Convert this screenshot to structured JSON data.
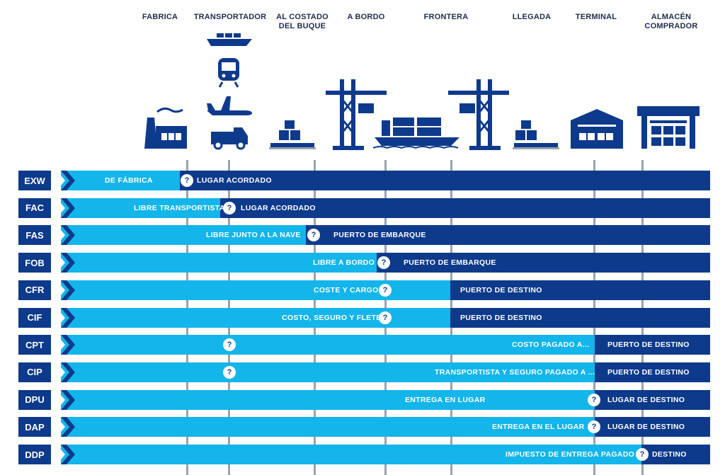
{
  "columns": [
    {
      "name": "FABRICA"
    },
    {
      "name": "TRANSPORTADOR"
    },
    {
      "name": "AL COSTADO\nDEL BUQUE"
    },
    {
      "name": "A BORDO"
    },
    {
      "name": "FRONTERA"
    },
    {
      "name": "LLEGADA"
    },
    {
      "name": "TERMINAL"
    },
    {
      "name": "ALMACÉN\nCOMPRADOR"
    }
  ],
  "icons": [
    "factory-icon",
    "cargo-ship-icon",
    "train-icon",
    "airplane-icon",
    "truck-icon",
    "pallet-boxes-icon",
    "port-crane-icon",
    "container-ship-icon",
    "port-crane-icon",
    "pallet-boxes-icon",
    "terminal-warehouse-icon",
    "buyer-warehouse-icon"
  ],
  "marker_symbol": "?",
  "rows": [
    {
      "code": "EXW",
      "seller_text": "DE FÁBRICA",
      "buyer_text": "LUGAR ACORDADO"
    },
    {
      "code": "FAC",
      "seller_text": "LIBRE TRANSPORTISTA",
      "buyer_text": "LUGAR ACORDADO"
    },
    {
      "code": "FAS",
      "seller_text": "LIBRE JUNTO A LA NAVE",
      "buyer_text": "PUERTO DE EMBARQUE"
    },
    {
      "code": "FOB",
      "seller_text": "LIBRE A BORDO",
      "buyer_text": "PUERTO DE EMBARQUE"
    },
    {
      "code": "CFR",
      "seller_text": "COSTE Y CARGO",
      "buyer_text": "PUERTO DE DESTINO"
    },
    {
      "code": "CIF",
      "seller_text": "COSTO, SEGURO Y FLETE",
      "buyer_text": "PUERTO DE DESTINO"
    },
    {
      "code": "CPT",
      "seller_text": "COSTO PAGADO A...",
      "buyer_text": "PUERTO DE DESTINO"
    },
    {
      "code": "CIP",
      "seller_text": "TRANSPORTISTA Y SEGURO PAGADO A ...",
      "buyer_text": "PUERTO DE DESTINO"
    },
    {
      "code": "DPU",
      "seller_text": "ENTREGA EN LUGAR",
      "buyer_text": "LUGAR DE DESTINO"
    },
    {
      "code": "DAP",
      "seller_text": "ENTREGA EN EL LUGAR",
      "buyer_text": "LUGAR DE DESTINO"
    },
    {
      "code": "DDP",
      "seller_text": "IMPUESTO DE ENTREGA PAGADO",
      "buyer_text": "DESTINO"
    }
  ],
  "colors": {
    "seller": "#13b5ea",
    "buyer": "#0e3a8c",
    "code_box": "#0e3a8c",
    "divider": "#9aa3ad",
    "label": "#1f2d4d"
  }
}
